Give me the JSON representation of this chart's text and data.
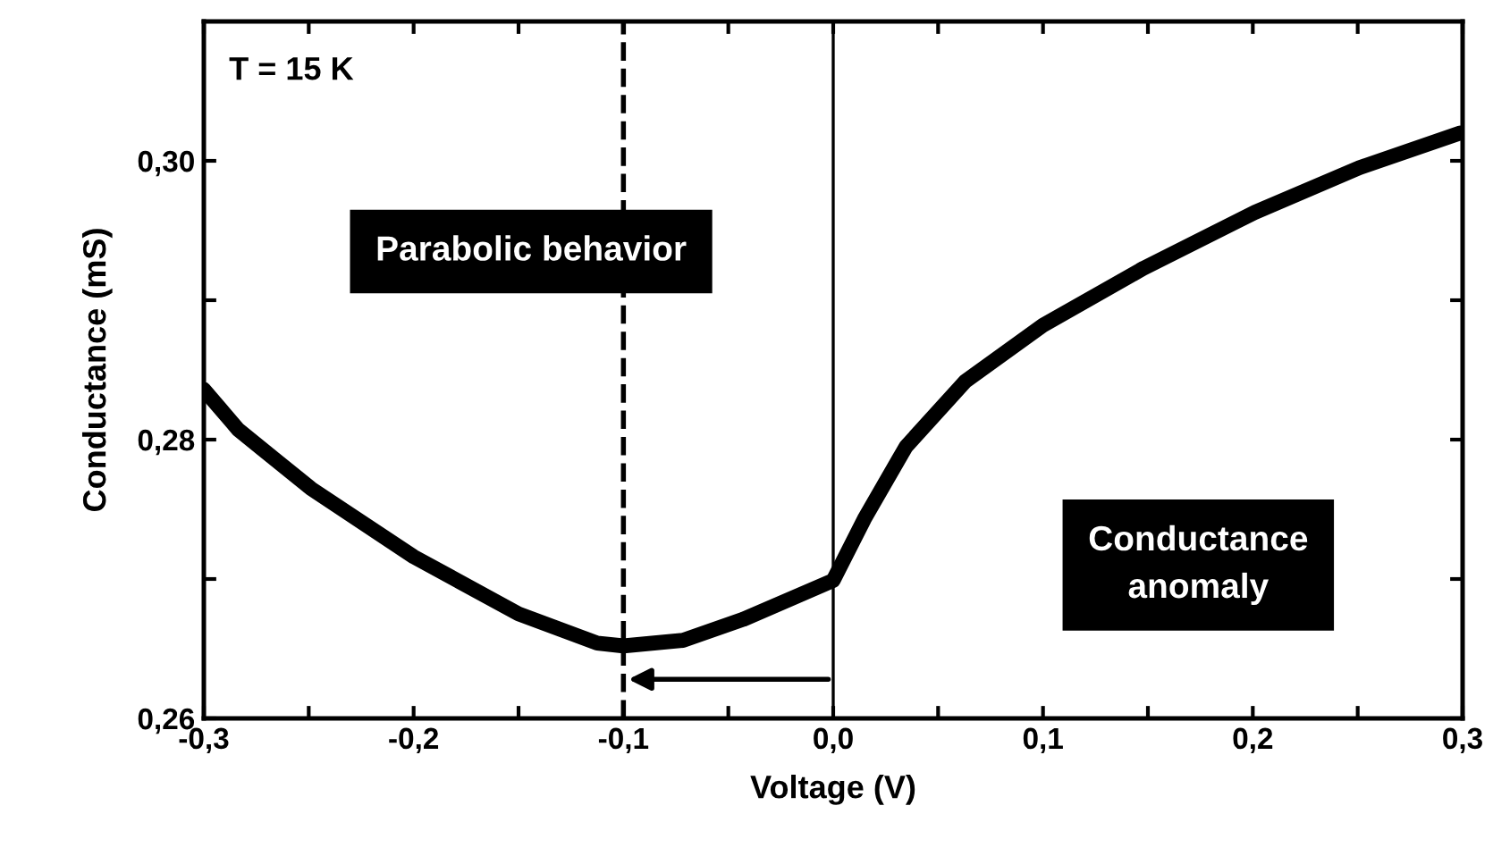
{
  "chart_data": {
    "type": "line",
    "xlabel": "Voltage (V)",
    "ylabel": "Conductance (mS)",
    "annotations": [
      "T = 15 K",
      "Parabolic behavior",
      "Conductance\nanomaly"
    ],
    "series": [
      {
        "color": "#000000",
        "x": [
          -0.3,
          -0.2835,
          -0.249,
          -0.2,
          -0.15,
          -0.1125,
          -0.1,
          -0.0716,
          -0.043,
          0.0,
          0.0148,
          0.0347,
          0.0631,
          0.1,
          0.148,
          0.2009,
          0.2506,
          0.2988
        ],
        "values": [
          0.2836,
          0.2807,
          0.2765,
          0.2716,
          0.2675,
          0.2654,
          0.2652,
          0.2656,
          0.2671,
          0.2699,
          0.2743,
          0.2795,
          0.2842,
          0.2882,
          0.2923,
          0.2963,
          0.2995,
          0.302
        ]
      }
    ],
    "xlim": [
      -0.3,
      0.3
    ],
    "ylim": [
      0.26,
      0.31
    ],
    "xticks": [
      {
        "value": -0.3,
        "label": "-0,3"
      },
      {
        "value": -0.25,
        "label": null
      },
      {
        "value": -0.2,
        "label": "-0,2"
      },
      {
        "value": -0.15,
        "label": null
      },
      {
        "value": -0.1,
        "label": "-0,1"
      },
      {
        "value": -0.05,
        "label": null
      },
      {
        "value": 0.0,
        "label": "0,0"
      },
      {
        "value": 0.05,
        "label": null
      },
      {
        "value": 0.1,
        "label": "0,1"
      },
      {
        "value": 0.15,
        "label": null
      },
      {
        "value": 0.2,
        "label": "0,2"
      },
      {
        "value": 0.25,
        "label": null
      },
      {
        "value": 0.3,
        "label": "0,3"
      }
    ],
    "yticks": [
      {
        "value": 0.26,
        "label": "0,26"
      },
      {
        "value": 0.27,
        "label": null
      },
      {
        "value": 0.28,
        "label": "0,28"
      },
      {
        "value": 0.29,
        "label": null
      },
      {
        "value": 0.3,
        "label": "0,30"
      }
    ],
    "ref_lines": [
      {
        "axis": "x",
        "value": -0.1,
        "line_style": "dashed",
        "color": "#000000"
      },
      {
        "axis": "x",
        "value": 0.0,
        "line_style": "solid",
        "color": "#000000"
      }
    ],
    "grid": false,
    "legend": false,
    "marker": "none",
    "line_style": "solid"
  }
}
